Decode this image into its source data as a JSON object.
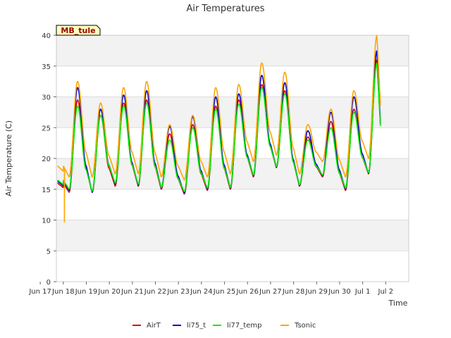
{
  "chart_data": {
    "type": "line",
    "title": "Air Temperatures",
    "xlabel": "Time",
    "ylabel": "Air Temperature (C)",
    "ylim": [
      0,
      40
    ],
    "yticks": [
      0,
      5,
      10,
      15,
      20,
      25,
      30,
      35,
      40
    ],
    "xlim": [
      16.7,
      32.0
    ],
    "xticks": [
      {
        "pos": 16.0,
        "label": "Jun 17"
      },
      {
        "pos": 17.0,
        "label": "Jun 18"
      },
      {
        "pos": 18.0,
        "label": "Jun 19"
      },
      {
        "pos": 19.0,
        "label": "Jun 20"
      },
      {
        "pos": 20.0,
        "label": "Jun 21"
      },
      {
        "pos": 21.0,
        "label": "Jun 22"
      },
      {
        "pos": 22.0,
        "label": "Jun 23"
      },
      {
        "pos": 23.0,
        "label": "Jun 24"
      },
      {
        "pos": 24.0,
        "label": "Jun 25"
      },
      {
        "pos": 25.0,
        "label": "Jun 26"
      },
      {
        "pos": 26.0,
        "label": "Jun 27"
      },
      {
        "pos": 27.0,
        "label": "Jun 28"
      },
      {
        "pos": 28.0,
        "label": "Jun 29"
      },
      {
        "pos": 29.0,
        "label": "Jun 30"
      },
      {
        "pos": 30.0,
        "label": "Jul 1"
      },
      {
        "pos": 31.0,
        "label": "Jul 2"
      }
    ],
    "site_label": "MB_tule",
    "legend_position": "bottom-center",
    "series": [
      {
        "name": "AirT",
        "color": "#dd0000",
        "daily": [
          [
            14.5,
            29.5
          ],
          [
            14.5,
            27.0
          ],
          [
            15.5,
            29.0
          ],
          [
            15.5,
            29.5
          ],
          [
            15.0,
            24.0
          ],
          [
            14.2,
            25.5
          ],
          [
            14.8,
            28.5
          ],
          [
            15.0,
            29.5
          ],
          [
            17.0,
            32.0
          ],
          [
            18.5,
            31.0
          ],
          [
            15.5,
            23.5
          ],
          [
            17.0,
            26.0
          ],
          [
            14.8,
            28.0
          ],
          [
            17.5,
            36.0
          ]
        ],
        "end_low": 24.8
      },
      {
        "name": "li75_t",
        "color": "#0000cc",
        "daily": [
          [
            14.8,
            31.5
          ],
          [
            14.5,
            28.0
          ],
          [
            15.8,
            30.3
          ],
          [
            15.6,
            31.0
          ],
          [
            15.2,
            25.2
          ],
          [
            14.4,
            26.8
          ],
          [
            15.0,
            30.0
          ],
          [
            15.2,
            30.5
          ],
          [
            17.2,
            33.5
          ],
          [
            18.6,
            32.3
          ],
          [
            15.6,
            24.5
          ],
          [
            17.2,
            27.5
          ],
          [
            15.0,
            30.0
          ],
          [
            17.6,
            37.5
          ]
        ],
        "end_low": 24.8
      },
      {
        "name": "li77_temp",
        "color": "#00ee00",
        "daily": [
          [
            15.0,
            28.5
          ],
          [
            14.7,
            27.0
          ],
          [
            16.0,
            28.5
          ],
          [
            15.8,
            29.0
          ],
          [
            15.3,
            23.0
          ],
          [
            14.6,
            25.0
          ],
          [
            15.2,
            28.0
          ],
          [
            15.3,
            28.8
          ],
          [
            17.3,
            31.5
          ],
          [
            18.7,
            30.5
          ],
          [
            15.7,
            23.0
          ],
          [
            17.3,
            25.0
          ],
          [
            15.2,
            27.5
          ],
          [
            17.7,
            35.5
          ]
        ],
        "end_low": 24.6
      },
      {
        "name": "Tsonic",
        "color": "#ffa500",
        "daily": [
          [
            17.0,
            32.5
          ],
          [
            17.0,
            29.0
          ],
          [
            17.5,
            31.5
          ],
          [
            17.5,
            32.5
          ],
          [
            17.0,
            25.5
          ],
          [
            16.5,
            27.0
          ],
          [
            17.0,
            31.5
          ],
          [
            17.5,
            32.0
          ],
          [
            19.5,
            35.5
          ],
          [
            20.5,
            34.0
          ],
          [
            17.5,
            25.5
          ],
          [
            19.5,
            28.0
          ],
          [
            17.0,
            31.0
          ],
          [
            20.0,
            40.0
          ]
        ],
        "start": 18.8,
        "spike": {
          "day": 17.05,
          "value": 9.7
        },
        "end_low": 27.8
      }
    ]
  }
}
